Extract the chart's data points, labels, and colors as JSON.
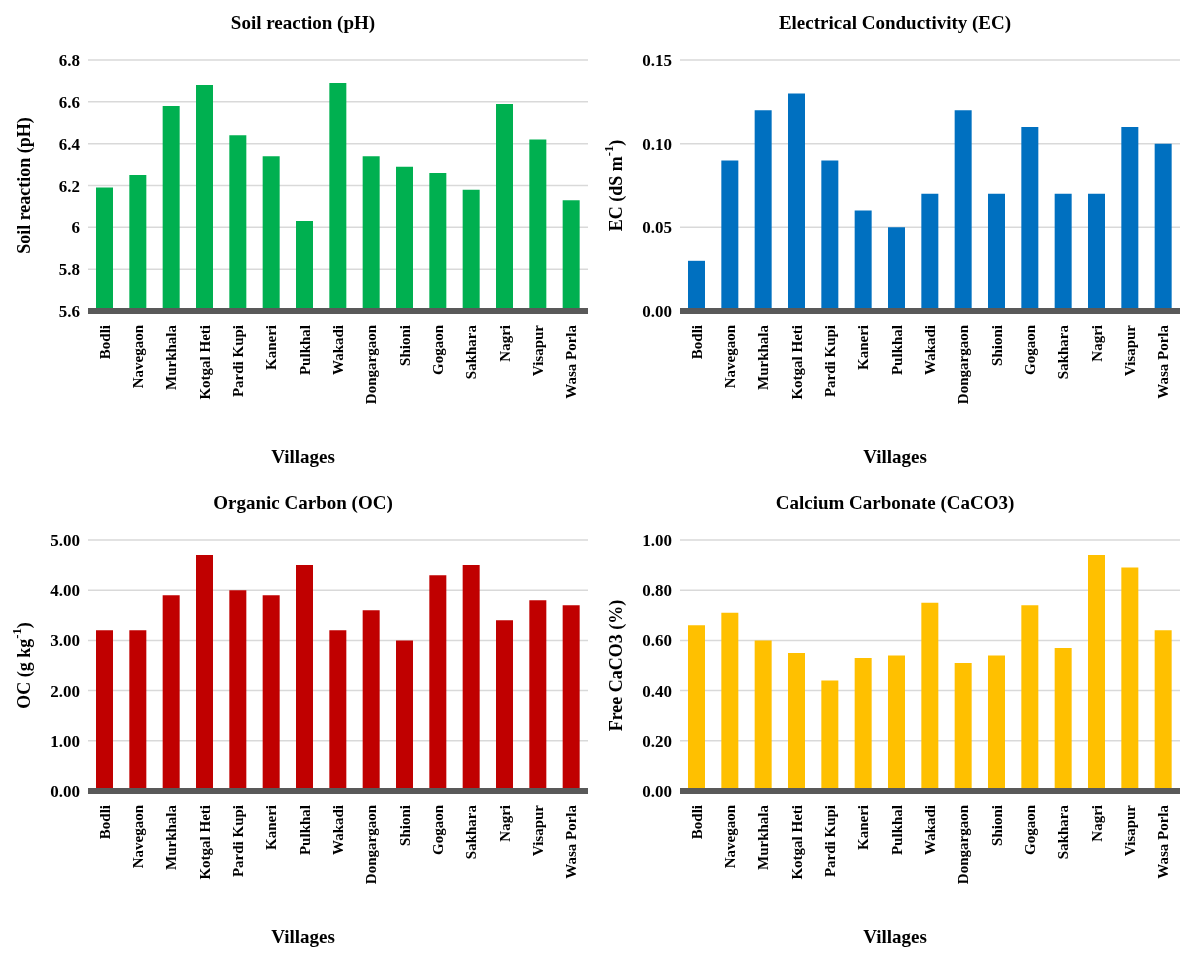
{
  "chart_data": [
    {
      "type": "bar",
      "title": "Soil reaction (pH)",
      "xlabel": "Villages",
      "ylabel": "Soil reaction (pH)",
      "categories": [
        "Bodli",
        "Navegaon",
        "Murkhala",
        "Kotgal Heti",
        "Pardi Kupi",
        "Kaneri",
        "Pulkhal",
        "Wakadi",
        "Dongargaon",
        "Shioni",
        "Gogaon",
        "Sakhara",
        "Nagri",
        "Visapur",
        "Wasa Porla"
      ],
      "values": [
        6.19,
        6.25,
        6.58,
        6.68,
        6.44,
        6.34,
        6.03,
        6.69,
        6.34,
        6.29,
        6.26,
        6.18,
        6.59,
        6.42,
        6.13
      ],
      "color": "#00b050",
      "ylim": [
        5.6,
        6.8
      ],
      "yticks": [
        5.6,
        5.8,
        6,
        6.2,
        6.4,
        6.6,
        6.8
      ],
      "grid": "y"
    },
    {
      "type": "bar",
      "title": "Electrical Conductivity (EC)",
      "xlabel": "Villages",
      "ylabel": "EC (dS m$^{-1}$)",
      "categories": [
        "Bodli",
        "Navegaon",
        "Murkhala",
        "Kotgal Heti",
        "Pardi Kupi",
        "Kaneri",
        "Pulkhal",
        "Wakadi",
        "Dongargaon",
        "Shioni",
        "Gogaon",
        "Sakhara",
        "Nagri",
        "Visapur",
        "Wasa Porla"
      ],
      "values": [
        0.03,
        0.09,
        0.12,
        0.13,
        0.09,
        0.06,
        0.05,
        0.07,
        0.12,
        0.07,
        0.11,
        0.07,
        0.07,
        0.11,
        0.1
      ],
      "color": "#0070c0",
      "ylim": [
        0,
        0.15
      ],
      "yticks": [
        {
          "value": 0,
          "label": "0.00"
        },
        0.05,
        {
          "value": 0.1,
          "label": "0.10"
        },
        0.15
      ],
      "grid": "y"
    },
    {
      "type": "bar",
      "title": "Organic Carbon (OC)",
      "xlabel": "Villages",
      "ylabel": "OC (g kg$^{-1}$)",
      "categories": [
        "Bodli",
        "Navegaon",
        "Murkhala",
        "Kotgal Heti",
        "Pardi Kupi",
        "Kaneri",
        "Pulkhal",
        "Wakadi",
        "Dongargaon",
        "Shioni",
        "Gogaon",
        "Sakhara",
        "Nagri",
        "Visapur",
        "Wasa Porla"
      ],
      "values": [
        3.2,
        3.2,
        3.9,
        4.7,
        4.0,
        3.9,
        4.5,
        3.2,
        3.6,
        3.0,
        4.3,
        4.5,
        3.4,
        3.8,
        3.7
      ],
      "color": "#c00000",
      "ylim": [
        0,
        5
      ],
      "yticks": [
        {
          "value": 0,
          "label": "0.00"
        },
        {
          "value": 1,
          "label": "1.00"
        },
        {
          "value": 2,
          "label": "2.00"
        },
        {
          "value": 3,
          "label": "3.00"
        },
        {
          "value": 4,
          "label": "4.00"
        },
        {
          "value": 5,
          "label": "5.00"
        }
      ],
      "grid": "y"
    },
    {
      "type": "bar",
      "title": "Calcium Carbonate (CaCO3)",
      "xlabel": "Villages",
      "ylabel": "Free CaCO3 (%)",
      "categories": [
        "Bodli",
        "Navegaon",
        "Murkhala",
        "Kotgal Heti",
        "Pardi Kupi",
        "Kaneri",
        "Pulkhal",
        "Wakadi",
        "Dongargaon",
        "Shioni",
        "Gogaon",
        "Sakhara",
        "Nagri",
        "Visapur",
        "Wasa Porla"
      ],
      "values": [
        0.66,
        0.71,
        0.6,
        0.55,
        0.44,
        0.53,
        0.54,
        0.75,
        0.51,
        0.54,
        0.74,
        0.57,
        0.94,
        0.89,
        0.64
      ],
      "color": "#ffc000",
      "ylim": [
        0,
        1
      ],
      "yticks": [
        {
          "value": 0,
          "label": "0.00"
        },
        {
          "value": 0.2,
          "label": "0.20"
        },
        {
          "value": 0.4,
          "label": "0.40"
        },
        {
          "value": 0.6,
          "label": "0.60"
        },
        {
          "value": 0.8,
          "label": "0.80"
        },
        {
          "value": 1,
          "label": "1.00"
        }
      ],
      "grid": "y"
    }
  ]
}
